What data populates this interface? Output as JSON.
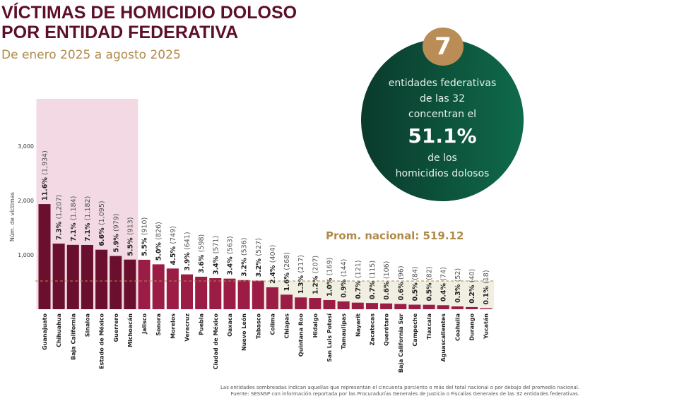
{
  "header": {
    "title_line1": "VÍCTIMAS DE HOMICIDIO DOLOSO",
    "title_line2": "POR ENTIDAD FEDERATIVA",
    "subtitle": "De enero 2025 a agosto 2025"
  },
  "callout": {
    "number": "7",
    "line1": "entidades federativas",
    "line2": "de las 32",
    "line3": "concentran el",
    "percent": "51.1%",
    "line4": "de los",
    "line5": "homicidios dolosos"
  },
  "footnotes": [
    "Las entidades sombreadas indican aquellas que representan el cincuenta porciento o más del total nacional o por debajo del promedio nacional.",
    "Fuente: SESNSP con información reportada por las Procuradurías Generales de Justicia o Fiscalías Generales de las 32 entidades federativas."
  ],
  "colors": {
    "top_bars": "#6b0f2e",
    "other_bars": "#9b1c45",
    "top_shade": "#f2d9e3",
    "below_avg_shade": "#f1efe2",
    "avg_line": "#b08a4a",
    "circle": "#0c5a40",
    "badge": "#b98d55"
  },
  "chart_data": {
    "type": "bar",
    "ylabel": "Núm. de víctimas",
    "ylim": [
      0,
      3500
    ],
    "yticks": [
      {
        "value": 1000,
        "label": "1,000"
      },
      {
        "value": 2000,
        "label": "2,000"
      },
      {
        "value": 3000,
        "label": "3,000"
      }
    ],
    "average": {
      "value": 519.12,
      "label": "Prom. nacional: 519.12"
    },
    "top_count": 7,
    "categories": [
      "Guanajuato",
      "Chihuahua",
      "Baja California",
      "Sinaloa",
      "Estado de México",
      "Guerrero",
      "Michoacán",
      "Jalisco",
      "Sonora",
      "Morelos",
      "Veracruz",
      "Puebla",
      "Ciudad de México",
      "Oaxaca",
      "Nuevo León",
      "Tabasco",
      "Colima",
      "Chiapas",
      "Quintana Roo",
      "Hidalgo",
      "San Luis Potosí",
      "Tamaulipas",
      "Nayarit",
      "Zacatecas",
      "Querétaro",
      "Baja California Sur",
      "Campeche",
      "Tlaxcala",
      "Aguascalientes",
      "Coahuila",
      "Durango",
      "Yucatán"
    ],
    "values": [
      1934,
      1207,
      1184,
      1182,
      1095,
      979,
      913,
      910,
      826,
      749,
      641,
      598,
      571,
      563,
      536,
      527,
      404,
      268,
      217,
      207,
      169,
      144,
      121,
      115,
      106,
      96,
      84,
      82,
      74,
      52,
      40,
      18
    ],
    "percent_labels": [
      "11.6%",
      "7.3%",
      "7.1%",
      "7.1%",
      "6.6%",
      "5.9%",
      "5.5%",
      "5.5%",
      "5.0%",
      "4.5%",
      "3.9%",
      "3.6%",
      "3.4%",
      "3.4%",
      "3.2%",
      "3.2%",
      "2.4%",
      "1.6%",
      "1.3%",
      "1.2%",
      "1.0%",
      "0.9%",
      "0.7%",
      "0.7%",
      "0.6%",
      "0.6%",
      "0.5%",
      "0.5%",
      "0.4%",
      "0.3%",
      "0.2%",
      "0.1%"
    ],
    "value_labels": [
      "(1,934)",
      "(1,207)",
      "(1,184)",
      "(1,182)",
      "(1,095)",
      "(979)",
      "(913)",
      "(910)",
      "(826)",
      "(749)",
      "(641)",
      "(598)",
      "(571)",
      "(563)",
      "(536)",
      "(527)",
      "(404)",
      "(268)",
      "(217)",
      "(207)",
      "(169)",
      "(144)",
      "(121)",
      "(115)",
      "(106)",
      "(96)",
      "(84)",
      "(82)",
      "(74)",
      "(52)",
      "(40)",
      "(18)"
    ]
  }
}
